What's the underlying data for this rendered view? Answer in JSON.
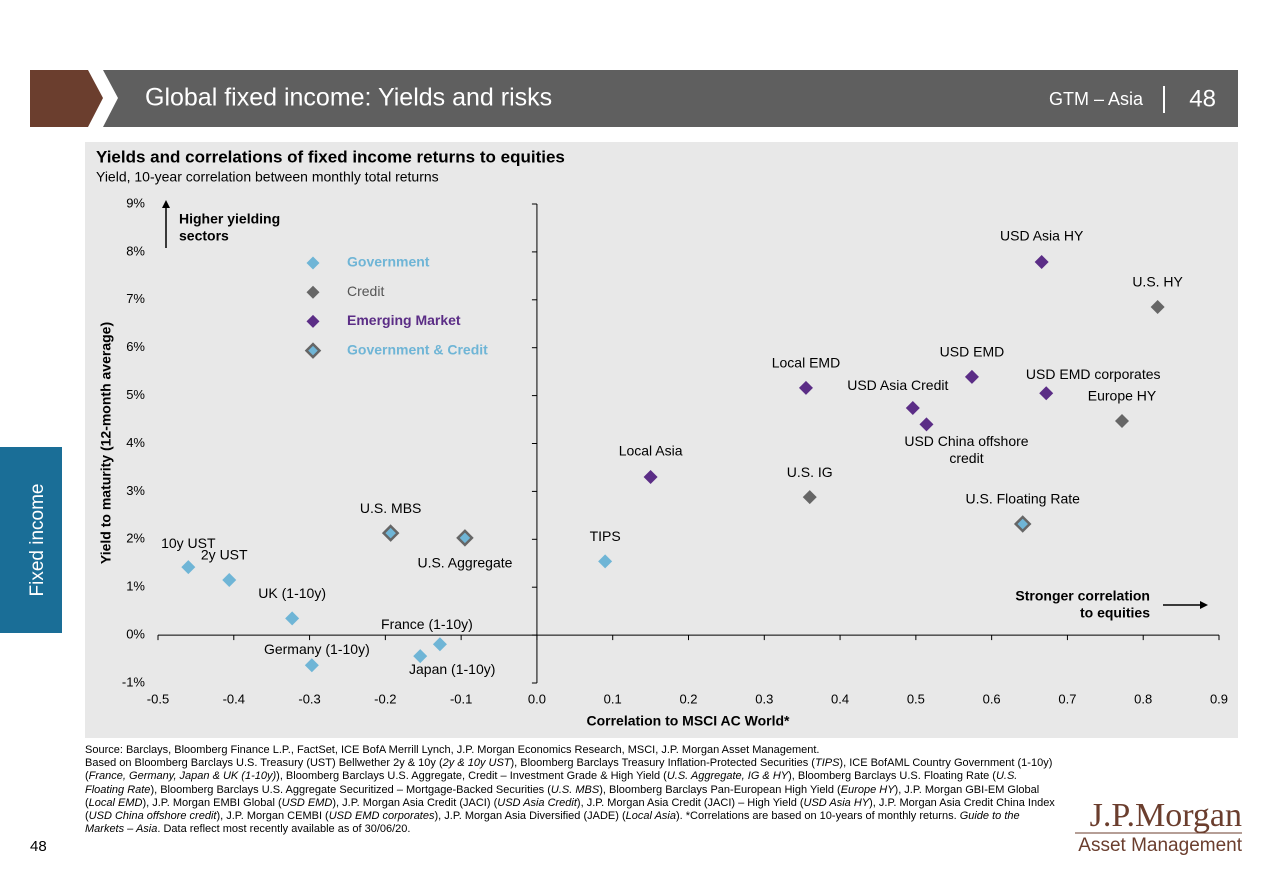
{
  "header": {
    "title": "Global fixed income: Yields and risks",
    "guide": "GTM – Asia",
    "page": "48"
  },
  "side_tab": "Fixed income",
  "chart_data": {
    "type": "scatter",
    "title": "Yields and correlations of fixed income returns to equities",
    "subtitle": "Yield, 10-year correlation between monthly total returns",
    "x_label": "Correlation to MSCI AC World*",
    "y_label": "Yield to maturity (12-month average)",
    "xlim": [
      -0.5,
      0.9
    ],
    "ylim": [
      -1,
      9
    ],
    "xticks": [
      -0.5,
      -0.4,
      -0.3,
      -0.2,
      -0.1,
      {
        "value": 0,
        "label": "0.0"
      },
      0.1,
      0.2,
      0.3,
      0.4,
      0.5,
      0.6,
      0.7,
      0.8,
      0.9
    ],
    "yticks": [
      {
        "value": -1,
        "label": "-1%"
      },
      {
        "value": 0,
        "label": "0%"
      },
      {
        "value": 1,
        "label": "1%"
      },
      {
        "value": 2,
        "label": "2%"
      },
      {
        "value": 3,
        "label": "3%"
      },
      {
        "value": 4,
        "label": "4%"
      },
      {
        "value": 5,
        "label": "5%"
      },
      {
        "value": 6,
        "label": "6%"
      },
      {
        "value": 7,
        "label": "7%"
      },
      {
        "value": 8,
        "label": "8%"
      },
      {
        "value": 9,
        "label": "9%"
      }
    ],
    "series": [
      {
        "name": "Government",
        "color": "#6fb5d6",
        "labels": [
          "10y UST",
          "2y UST",
          "UK (1-10y)",
          "Germany (1-10y)",
          "Japan (1-10y)",
          "France (1-10y)",
          "TIPS"
        ],
        "x": [
          -0.46,
          -0.406,
          -0.323,
          -0.297,
          -0.154,
          -0.128,
          0.09
        ],
        "values": [
          1.42,
          1.15,
          0.35,
          -0.63,
          -0.44,
          -0.19,
          1.54
        ]
      },
      {
        "name": "Credit",
        "color": "#666666",
        "labels": [
          "U.S. IG",
          "Europe HY",
          "U.S. HY"
        ],
        "x": [
          0.36,
          0.772,
          0.819
        ],
        "values": [
          2.88,
          4.47,
          6.85
        ]
      },
      {
        "name": "Emerging Market",
        "color": "#5b2d86",
        "labels": [
          "Local Asia",
          "Local EMD",
          "USD Asia Credit",
          [
            "USD China offshore",
            "credit"
          ],
          "USD EMD",
          "USD Asia HY",
          "USD EMD corporates"
        ],
        "x": [
          0.15,
          0.355,
          0.496,
          0.514,
          0.574,
          0.666,
          0.672
        ],
        "values": [
          3.3,
          5.16,
          4.74,
          4.4,
          5.39,
          7.79,
          5.05
        ]
      },
      {
        "name": "Government & Credit",
        "color": "#6fb5d6",
        "stroke": "#666666",
        "labels": [
          "U.S. MBS",
          "U.S. Aggregate",
          "U.S. Floating Rate"
        ],
        "x": [
          -0.193,
          -0.095,
          0.641
        ],
        "values": [
          2.13,
          2.03,
          2.32
        ]
      }
    ],
    "annotations": [
      [
        "Higher yielding",
        "sectors"
      ],
      [
        "Stronger correlation",
        "to equities"
      ]
    ]
  },
  "footnote": {
    "source": "Source: Barclays, Bloomberg Finance L.P., FactSet, ICE BofA Merrill Lynch, J.P. Morgan Economics Research, MSCI, J.P. Morgan Asset Management.",
    "segments": [
      "Based on Bloomberg Barclays U.S. Treasury (UST) Bellwether 2y & 10y (",
      "2y & 10y UST",
      "), Bloomberg Barclays Treasury Inflation-Protected Securities (",
      "TIPS",
      "), ICE BofAML Country Government (1-10y) (",
      "France, Germany, Japan & UK (1-10y)",
      "), Bloomberg Barclays U.S. Aggregate, Credit – Investment Grade & High Yield (",
      "U.S. Aggregate, IG & HY",
      "), Bloomberg Barclays U.S. Floating Rate (",
      "U.S. Floating Rate",
      "), Bloomberg Barclays U.S. Aggregate Securitized – Mortgage-Backed Securities (",
      "U.S. MBS",
      "), Bloomberg Barclays Pan-European High Yield (",
      "Europe HY",
      "), J.P. Morgan GBI-EM Global (",
      "Local EMD",
      "), J.P. Morgan EMBI Global (",
      "USD EMD",
      "), J.P. Morgan Asia Credit (JACI) (",
      "USD Asia Credit",
      "), J.P. Morgan Asia Credit (JACI) – High Yield (",
      "USD Asia HY",
      "), J.P. Morgan Asia Credit China Index (",
      "USD China offshore credit",
      "), J.P. Morgan CEMBI (",
      "USD EMD corporates",
      "), J.P. Morgan Asia Diversified (JADE) (",
      "Local Asia",
      "). *Correlations are based on 10-years of monthly returns. ",
      "Guide to the Markets – Asia",
      ". Data reflect most recently available as of 30/06/20."
    ]
  },
  "page_number": "48",
  "logo": {
    "brand": "J.P.Morgan",
    "division": "Asset Management"
  }
}
